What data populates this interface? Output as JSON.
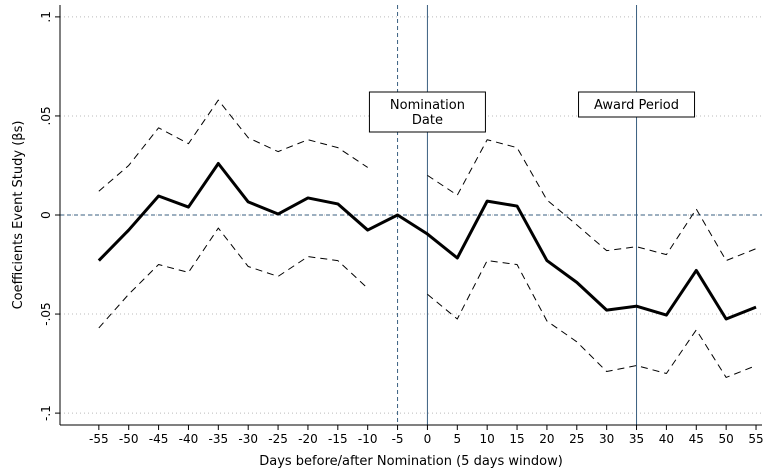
{
  "chart_data": {
    "type": "line",
    "x_label": "Days before/after Nomination (5 days window)",
    "y_label": "Coefficients Event Study (βs)",
    "x": [
      -55,
      -50,
      -45,
      -40,
      -35,
      -30,
      -25,
      -20,
      -15,
      -10,
      -5,
      0,
      5,
      10,
      15,
      20,
      25,
      30,
      35,
      40,
      45,
      50,
      55
    ],
    "series": [
      {
        "color": "#000000",
        "style": "solid",
        "width": 3,
        "values": [
          -0.023,
          -0.0076,
          0.0096,
          0.004,
          0.026,
          0.0066,
          0.0005,
          0.0086,
          0.0056,
          -0.0076,
          0,
          -0.0096,
          -0.0217,
          0.007,
          0.0045,
          -0.023,
          -0.034,
          -0.048,
          -0.046,
          -0.0505,
          -0.028,
          -0.0525,
          -0.0465
        ]
      },
      {
        "color": "#000000",
        "style": "dash",
        "width": 1,
        "values": [
          0.012,
          0.025,
          0.044,
          0.036,
          0.058,
          0.039,
          0.032,
          0.038,
          0.034,
          0.024,
          null,
          0.02,
          0.01,
          0.038,
          0.034,
          0.0076,
          -0.005,
          -0.018,
          -0.016,
          -0.02,
          0.003,
          -0.023,
          -0.017
        ]
      },
      {
        "color": "#000000",
        "style": "dash",
        "width": 1,
        "values": [
          -0.057,
          -0.04,
          -0.025,
          -0.029,
          -0.0066,
          -0.026,
          -0.031,
          -0.021,
          -0.023,
          -0.037,
          null,
          -0.04,
          -0.0525,
          -0.023,
          -0.025,
          -0.0535,
          -0.064,
          -0.079,
          -0.076,
          -0.08,
          -0.058,
          -0.082,
          -0.076
        ]
      }
    ],
    "xlim": [
      -61.5,
      56
    ],
    "ylim": [
      -0.106,
      0.106
    ],
    "xticks": [
      -55,
      -50,
      -45,
      -40,
      -35,
      -30,
      -25,
      -20,
      -15,
      -10,
      -5,
      0,
      5,
      10,
      15,
      20,
      25,
      30,
      35,
      40,
      45,
      50,
      55
    ],
    "yticks": [
      {
        "value": 0.1,
        "label": ".1"
      },
      {
        "value": 0.05,
        "label": ".05"
      },
      0,
      {
        "value": -0.05,
        "label": "-.05"
      },
      {
        "value": -0.1,
        "label": "-.1"
      }
    ],
    "grid": true,
    "reference_lines": [
      {
        "axis": "y",
        "value": 0,
        "style": "dash",
        "color": "#3a5f80"
      },
      {
        "axis": "x",
        "value": -5,
        "style": "dash",
        "color": "#3a5f80"
      },
      {
        "axis": "x",
        "value": 0,
        "style": "solid",
        "color": "#3a5f80"
      },
      {
        "axis": "x",
        "value": 35,
        "style": "solid",
        "color": "#3a5f80"
      }
    ],
    "annotations": [
      {
        "lines": [
          "Nomination",
          "Date"
        ]
      },
      {
        "lines": [
          "Award Period"
        ]
      }
    ]
  }
}
